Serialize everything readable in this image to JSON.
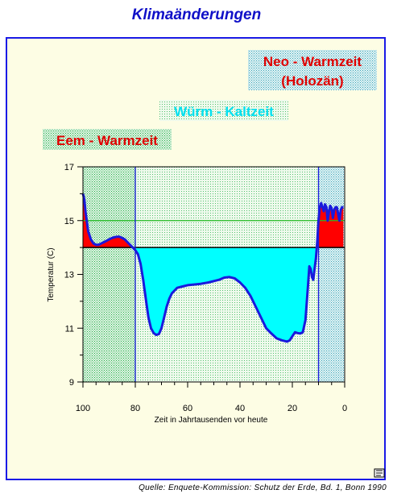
{
  "page": {
    "title": "Klimaänderungen",
    "source": "Quelle: Enquete-Kommission: Schutz der Erde, Bd. 1, Bonn 1990"
  },
  "colors": {
    "title": "#1010c8",
    "frame_border": "#1a1ae6",
    "frame_bg": "#fdfde4",
    "warm_period": "#ff0000",
    "cold_period": "#00ffff",
    "temperature_line": "#1a1adc",
    "mean_line": "#22bb22",
    "warm_band": "#9ee8b0",
    "cold_band": "#cfeecd",
    "holocene_band": "#a8e0e8"
  },
  "chart_data": {
    "type": "area",
    "title": "",
    "xlabel": "Zeit in Jahrtausenden vor heute",
    "ylabel": "Temperatur (C)",
    "xlim": [
      100,
      0
    ],
    "ylim": [
      9,
      17
    ],
    "x_ticks": [
      100,
      80,
      60,
      40,
      20,
      0
    ],
    "y_ticks": [
      9,
      11,
      13,
      15,
      17
    ],
    "baseline": 14,
    "reference_line": 15,
    "period_boundaries": [
      80,
      10
    ],
    "periods": [
      {
        "name": "Eem - Warmzeit",
        "from": 100,
        "to": 80,
        "kind": "warm"
      },
      {
        "name": "Würm - Kaltzeit",
        "from": 80,
        "to": 10,
        "kind": "cold"
      },
      {
        "name": "Neo - Warmzeit",
        "name2": "(Holozän)",
        "from": 10,
        "to": 0,
        "kind": "warm"
      }
    ],
    "series": [
      {
        "x": [
          100,
          99.5,
          99,
          98,
          97,
          96,
          95,
          94,
          93,
          92,
          91,
          90,
          89,
          88,
          87,
          86,
          85,
          84,
          83,
          82,
          81,
          80,
          79,
          78,
          77,
          76,
          75,
          74,
          73,
          72,
          71,
          70,
          69,
          68,
          67,
          66,
          65,
          64,
          62,
          60,
          58,
          55,
          52,
          50,
          48,
          46,
          44,
          42,
          40,
          38,
          36,
          34,
          32,
          30,
          28,
          26,
          24,
          22,
          21,
          20,
          19,
          18,
          17,
          16,
          15,
          14,
          13.5,
          13,
          12.5,
          12,
          11.5,
          11,
          10.5,
          10,
          9.5,
          9,
          8.5,
          8,
          7.5,
          7,
          6.5,
          6,
          5.5,
          5,
          4.5,
          4,
          3.5,
          3,
          2.5,
          2,
          1.5,
          1,
          0.5
        ],
        "y": [
          16.0,
          15.8,
          15.3,
          14.6,
          14.3,
          14.15,
          14.1,
          14.1,
          14.15,
          14.2,
          14.25,
          14.3,
          14.35,
          14.38,
          14.4,
          14.4,
          14.35,
          14.3,
          14.2,
          14.1,
          14.0,
          13.9,
          13.75,
          13.4,
          12.8,
          12.1,
          11.4,
          11.0,
          10.82,
          10.75,
          10.78,
          11.0,
          11.4,
          11.8,
          12.1,
          12.3,
          12.4,
          12.5,
          12.55,
          12.6,
          12.62,
          12.65,
          12.7,
          12.75,
          12.8,
          12.88,
          12.9,
          12.85,
          12.7,
          12.5,
          12.2,
          11.8,
          11.4,
          11.0,
          10.8,
          10.62,
          10.55,
          10.5,
          10.55,
          10.7,
          10.85,
          10.82,
          10.8,
          10.85,
          11.3,
          12.6,
          13.3,
          13.2,
          12.9,
          12.8,
          13.2,
          13.6,
          14.2,
          15.0,
          15.5,
          15.65,
          15.5,
          15.35,
          15.6,
          15.5,
          15.0,
          15.35,
          15.55,
          15.45,
          15.1,
          15.4,
          15.5,
          15.5,
          15.25,
          15.0,
          15.4,
          15.5,
          15.5
        ]
      }
    ],
    "grid": false,
    "legend": "none"
  }
}
